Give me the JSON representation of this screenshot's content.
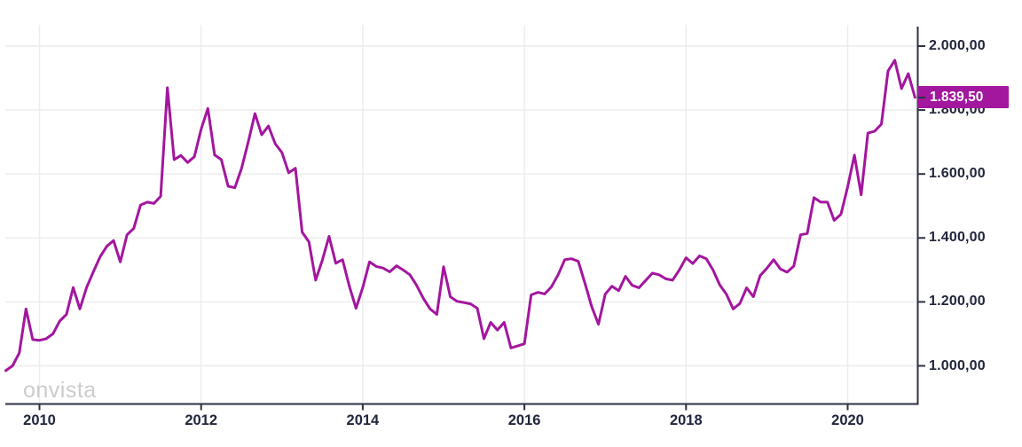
{
  "watermark": "onvista",
  "colors": {
    "accent": "#a3169e",
    "axis": "#2c3145",
    "grid": "#ececee",
    "tick_text": "#21263b",
    "watermark_text": "#cccccc",
    "badge_text": "#ffffff"
  },
  "chart_data": {
    "type": "line",
    "title": "",
    "legend": "none",
    "grid": "on",
    "last_value": 1839.5,
    "last_value_label": "1.839,50",
    "x_axis": {
      "label": "",
      "tick_years": [
        2010,
        2012,
        2014,
        2016,
        2018,
        2020
      ],
      "tick_labels": [
        "2010",
        "2012",
        "2014",
        "2016",
        "2018",
        "2020"
      ],
      "range_years": [
        2009.583,
        2020.917
      ]
    },
    "y_axis": {
      "label": "",
      "side": "right",
      "ticks": [
        2000,
        1800,
        1600,
        1400,
        1200,
        1000
      ],
      "tick_labels": [
        "2.000,00",
        "1.800,00",
        "1.600,00",
        "1.400,00",
        "1.200,00",
        "1.000,00"
      ],
      "range": [
        930,
        2075
      ]
    },
    "series": [
      {
        "name": "price",
        "start_month": "2009-08",
        "end_month": "2020-11",
        "interval": "monthly",
        "values": [
          985,
          1000,
          1040,
          1178,
          1082,
          1080,
          1085,
          1100,
          1140,
          1161,
          1245,
          1178,
          1245,
          1294,
          1341,
          1374,
          1392,
          1325,
          1410,
          1430,
          1503,
          1512,
          1508,
          1530,
          1870,
          1645,
          1658,
          1636,
          1654,
          1740,
          1805,
          1660,
          1645,
          1562,
          1557,
          1618,
          1700,
          1789,
          1723,
          1750,
          1695,
          1667,
          1604,
          1618,
          1418,
          1388,
          1268,
          1330,
          1405,
          1321,
          1332,
          1250,
          1180,
          1245,
          1325,
          1311,
          1306,
          1294,
          1313,
          1300,
          1285,
          1252,
          1211,
          1178,
          1161,
          1310,
          1216,
          1202,
          1198,
          1194,
          1180,
          1085,
          1136,
          1112,
          1136,
          1056,
          1062,
          1069,
          1222,
          1230,
          1225,
          1247,
          1285,
          1332,
          1335,
          1327,
          1258,
          1185,
          1130,
          1224,
          1249,
          1235,
          1280,
          1252,
          1244,
          1267,
          1290,
          1285,
          1272,
          1268,
          1300,
          1338,
          1320,
          1344,
          1335,
          1300,
          1253,
          1224,
          1178,
          1195,
          1244,
          1216,
          1282,
          1305,
          1332,
          1303,
          1293,
          1312,
          1410,
          1414,
          1526,
          1512,
          1512,
          1455,
          1474,
          1560,
          1659,
          1535,
          1728,
          1734,
          1756,
          1922,
          1956,
          1867,
          1914,
          1839.5
        ]
      }
    ]
  }
}
